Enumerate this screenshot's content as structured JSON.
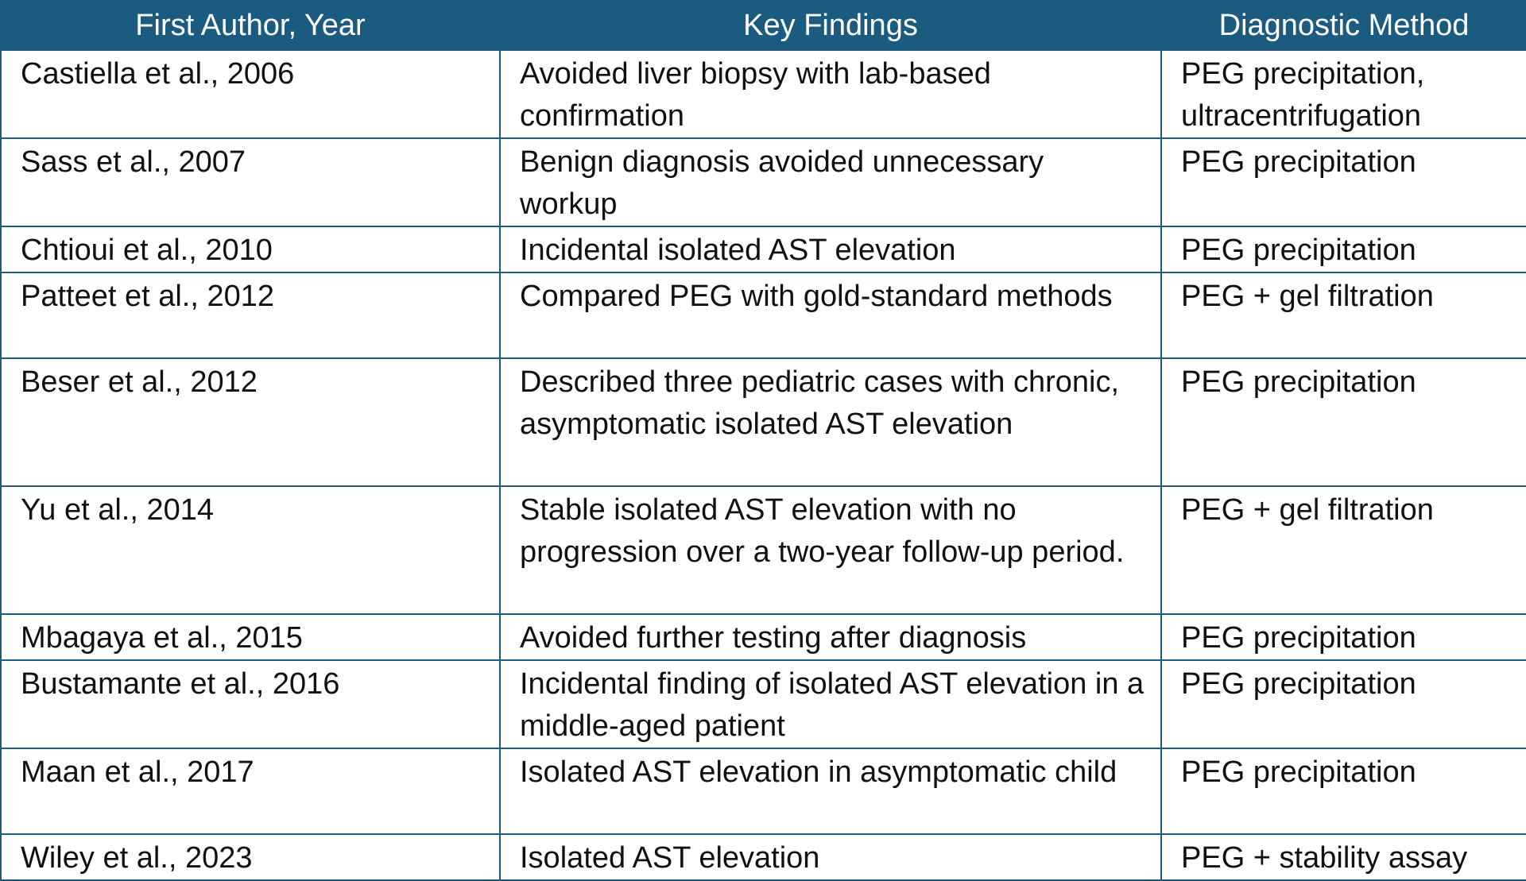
{
  "table": {
    "headers": [
      "First Author, Year",
      "Key Findings",
      "Diagnostic Method"
    ],
    "rows": [
      [
        "Castiella et al., 2006",
        "Avoided liver biopsy with lab-based confirmation",
        "PEG precipitation, ultracentrifugation"
      ],
      [
        "Sass et al., 2007",
        "Benign diagnosis avoided unnecessary workup",
        "PEG precipitation"
      ],
      [
        "Chtioui et al., 2010",
        "Incidental isolated AST elevation",
        "PEG precipitation"
      ],
      [
        "Patteet et al., 2012",
        "Compared PEG with gold-standard methods",
        "PEG + gel filtration"
      ],
      [
        "Beser et al., 2012",
        "Described three pediatric cases with chronic, asymptomatic isolated AST elevation",
        "PEG precipitation"
      ],
      [
        "Yu et al., 2014",
        "Stable isolated AST elevation with no progression over a two-year follow-up period.",
        "PEG + gel filtration"
      ],
      [
        "Mbagaya et al., 2015",
        "Avoided further testing after diagnosis",
        "PEG precipitation"
      ],
      [
        "Bustamante et al., 2016",
        "Incidental finding of isolated AST elevation in a middle-aged patient",
        "PEG precipitation"
      ],
      [
        "Maan et al., 2017",
        "Isolated AST elevation in asymptomatic child",
        "PEG precipitation"
      ],
      [
        "Wiley et al., 2023",
        "Isolated AST elevation",
        "PEG + stability assay"
      ]
    ]
  }
}
